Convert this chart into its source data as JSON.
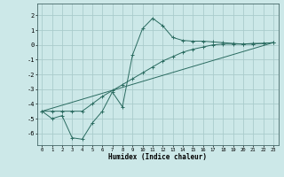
{
  "title": "",
  "xlabel": "Humidex (Indice chaleur)",
  "ylabel": "",
  "xlim": [
    -0.5,
    23.5
  ],
  "ylim": [
    -6.8,
    2.8
  ],
  "yticks": [
    2,
    1,
    0,
    -1,
    -2,
    -3,
    -4,
    -5,
    -6
  ],
  "xticks": [
    0,
    1,
    2,
    3,
    4,
    5,
    6,
    7,
    8,
    9,
    10,
    11,
    12,
    13,
    14,
    15,
    16,
    17,
    18,
    19,
    20,
    21,
    22,
    23
  ],
  "bg_color": "#cce8e8",
  "grid_color": "#aacccc",
  "line_color": "#2a6b60",
  "series": [
    {
      "x": [
        0,
        1,
        2,
        3,
        4,
        5,
        6,
        7,
        8,
        9,
        10,
        11,
        12,
        13,
        14,
        15,
        16,
        17,
        18,
        19,
        20,
        21,
        22,
        23
      ],
      "y": [
        -4.5,
        -5.0,
        -4.8,
        -6.3,
        -6.4,
        -5.3,
        -4.5,
        -3.2,
        -4.2,
        -0.7,
        1.1,
        1.8,
        1.3,
        0.5,
        0.3,
        0.25,
        0.25,
        0.2,
        0.15,
        0.1,
        0.05,
        0.1,
        0.1,
        0.15
      ],
      "marker": true
    },
    {
      "x": [
        0,
        1,
        2,
        3,
        4,
        5,
        6,
        7,
        8,
        9,
        10,
        11,
        12,
        13,
        14,
        15,
        16,
        17,
        18,
        19,
        20,
        21,
        22,
        23
      ],
      "y": [
        -4.5,
        -4.5,
        -4.5,
        -4.5,
        -4.5,
        -4.0,
        -3.5,
        -3.1,
        -2.7,
        -2.3,
        -1.9,
        -1.5,
        -1.1,
        -0.8,
        -0.5,
        -0.3,
        -0.15,
        0.0,
        0.05,
        0.05,
        0.05,
        0.05,
        0.1,
        0.15
      ],
      "marker": true
    },
    {
      "x": [
        0,
        23
      ],
      "y": [
        -4.5,
        0.15
      ],
      "marker": false
    }
  ]
}
